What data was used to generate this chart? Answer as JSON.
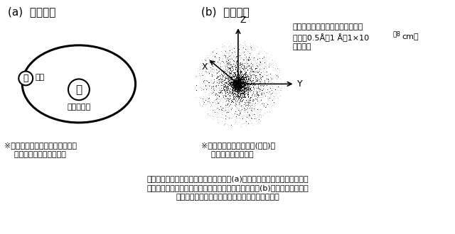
{
  "bg_color": "#ffffff",
  "title_a": "(a)  電子軌道",
  "title_b": "(b)  電子の雲",
  "label_electron": "電子",
  "label_nucleus": "水素原子核",
  "note_a_line1": "※このモデルでは、エネルギーを",
  "note_a_line2": "    単位に図を描いている。",
  "note_b_line1": "※このモデルでは、位置(距離)が",
  "note_b_line2": "    単位となっている。",
  "annotation_line1": "電子密度が一番高いのは、原子核",
  "annotation_line2": "から約0.5Å（1 Å＝1×10",
  "annotation_exp": "-8",
  "annotation_line2b": "cm）",
  "annotation_line3": "のところ",
  "bottom_text_line1": "水素原子のモデルを説明する場合、普通(a)のように、水素原子核の周囲を",
  "bottom_text_line2": "１個の電子が回っているように説明するが、実際は、(b)のように電子の雲",
  "bottom_text_line3": "（電子の存在確率分布）が全体をおおっている。",
  "axis_x_label": "X",
  "axis_y_label": "Y",
  "axis_z_label": "Z"
}
